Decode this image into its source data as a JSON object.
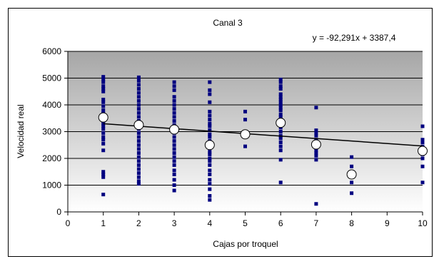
{
  "chart_data": {
    "type": "scatter",
    "title": "Canal 3",
    "xlabel": "Cajas por troquel",
    "ylabel": "Velocidad real",
    "xlim": [
      0,
      10
    ],
    "ylim": [
      0,
      6000
    ],
    "x_ticks": [
      0,
      1,
      2,
      3,
      4,
      5,
      6,
      7,
      8,
      9,
      10
    ],
    "y_ticks": [
      0,
      1000,
      2000,
      3000,
      4000,
      5000,
      6000
    ],
    "trendline": {
      "label": "y = -92,291x + 3387,4",
      "slope": -92.291,
      "intercept": 3387.4,
      "x_range": [
        1,
        10
      ]
    },
    "colors": {
      "points": "#000080",
      "means_fill": "#ffffff",
      "trendline": "#000000",
      "plot_bg_top": "#a6a6a6",
      "plot_bg_bottom": "#ffffff"
    },
    "series": [
      {
        "kind": "observations",
        "points": [
          [
            1,
            5050
          ],
          [
            1,
            4950
          ],
          [
            1,
            4850
          ],
          [
            1,
            4700
          ],
          [
            1,
            4600
          ],
          [
            1,
            4500
          ],
          [
            1,
            4200
          ],
          [
            1,
            4100
          ],
          [
            1,
            3950
          ],
          [
            1,
            3800
          ],
          [
            1,
            3700
          ],
          [
            1,
            3600
          ],
          [
            1,
            3500
          ],
          [
            1,
            3400
          ],
          [
            1,
            3300
          ],
          [
            1,
            3200
          ],
          [
            1,
            3100
          ],
          [
            1,
            2950
          ],
          [
            1,
            2800
          ],
          [
            1,
            2700
          ],
          [
            1,
            2550
          ],
          [
            1,
            2300
          ],
          [
            1,
            1500
          ],
          [
            1,
            1400
          ],
          [
            1,
            1300
          ],
          [
            1,
            650
          ],
          [
            2,
            5030
          ],
          [
            2,
            4900
          ],
          [
            2,
            4750
          ],
          [
            2,
            4600
          ],
          [
            2,
            4450
          ],
          [
            2,
            4300
          ],
          [
            2,
            4150
          ],
          [
            2,
            4000
          ],
          [
            2,
            3850
          ],
          [
            2,
            3700
          ],
          [
            2,
            3550
          ],
          [
            2,
            3400
          ],
          [
            2,
            3250
          ],
          [
            2,
            3100
          ],
          [
            2,
            2950
          ],
          [
            2,
            2800
          ],
          [
            2,
            2650
          ],
          [
            2,
            2500
          ],
          [
            2,
            2350
          ],
          [
            2,
            2200
          ],
          [
            2,
            2050
          ],
          [
            2,
            1900
          ],
          [
            2,
            1750
          ],
          [
            2,
            1600
          ],
          [
            2,
            1450
          ],
          [
            2,
            1300
          ],
          [
            2,
            1150
          ],
          [
            2,
            1050
          ],
          [
            3,
            4850
          ],
          [
            3,
            4700
          ],
          [
            3,
            4550
          ],
          [
            3,
            4300
          ],
          [
            3,
            4150
          ],
          [
            3,
            4000
          ],
          [
            3,
            3850
          ],
          [
            3,
            3700
          ],
          [
            3,
            3550
          ],
          [
            3,
            3400
          ],
          [
            3,
            3250
          ],
          [
            3,
            3100
          ],
          [
            3,
            2950
          ],
          [
            3,
            2800
          ],
          [
            3,
            2650
          ],
          [
            3,
            2500
          ],
          [
            3,
            2350
          ],
          [
            3,
            2200
          ],
          [
            3,
            2050
          ],
          [
            3,
            1900
          ],
          [
            3,
            1750
          ],
          [
            3,
            1550
          ],
          [
            3,
            1400
          ],
          [
            3,
            1200
          ],
          [
            3,
            1000
          ],
          [
            3,
            800
          ],
          [
            4,
            4850
          ],
          [
            4,
            4550
          ],
          [
            4,
            4400
          ],
          [
            4,
            4100
          ],
          [
            4,
            3750
          ],
          [
            4,
            3600
          ],
          [
            4,
            3450
          ],
          [
            4,
            3300
          ],
          [
            4,
            3200
          ],
          [
            4,
            3050
          ],
          [
            4,
            2900
          ],
          [
            4,
            2800
          ],
          [
            4,
            2650
          ],
          [
            4,
            2500
          ],
          [
            4,
            2400
          ],
          [
            4,
            2250
          ],
          [
            4,
            2150
          ],
          [
            4,
            2000
          ],
          [
            4,
            1900
          ],
          [
            4,
            1750
          ],
          [
            4,
            1550
          ],
          [
            4,
            1400
          ],
          [
            4,
            1200
          ],
          [
            4,
            1050
          ],
          [
            4,
            850
          ],
          [
            4,
            600
          ],
          [
            4,
            450
          ],
          [
            5,
            3750
          ],
          [
            5,
            3450
          ],
          [
            5,
            3000
          ],
          [
            5,
            2850
          ],
          [
            5,
            2450
          ],
          [
            6,
            4950
          ],
          [
            6,
            4850
          ],
          [
            6,
            4700
          ],
          [
            6,
            4600
          ],
          [
            6,
            4400
          ],
          [
            6,
            4300
          ],
          [
            6,
            4200
          ],
          [
            6,
            4100
          ],
          [
            6,
            4000
          ],
          [
            6,
            3900
          ],
          [
            6,
            3800
          ],
          [
            6,
            3650
          ],
          [
            6,
            3550
          ],
          [
            6,
            3450
          ],
          [
            6,
            3350
          ],
          [
            6,
            3250
          ],
          [
            6,
            3150
          ],
          [
            6,
            3000
          ],
          [
            6,
            2850
          ],
          [
            6,
            2750
          ],
          [
            6,
            2600
          ],
          [
            6,
            2450
          ],
          [
            6,
            2300
          ],
          [
            6,
            1950
          ],
          [
            6,
            1100
          ],
          [
            7,
            3900
          ],
          [
            7,
            3050
          ],
          [
            7,
            2950
          ],
          [
            7,
            2850
          ],
          [
            7,
            2700
          ],
          [
            7,
            2600
          ],
          [
            7,
            2500
          ],
          [
            7,
            2400
          ],
          [
            7,
            2300
          ],
          [
            7,
            2200
          ],
          [
            7,
            2100
          ],
          [
            7,
            1950
          ],
          [
            7,
            300
          ],
          [
            8,
            2050
          ],
          [
            8,
            1700
          ],
          [
            8,
            1300
          ],
          [
            8,
            1100
          ],
          [
            8,
            700
          ],
          [
            10,
            3200
          ],
          [
            10,
            2700
          ],
          [
            10,
            2600
          ],
          [
            10,
            2450
          ],
          [
            10,
            2300
          ],
          [
            10,
            2150
          ],
          [
            10,
            2000
          ],
          [
            10,
            1700
          ],
          [
            10,
            1100
          ]
        ]
      },
      {
        "kind": "means",
        "points": [
          [
            1,
            3530
          ],
          [
            2,
            3250
          ],
          [
            3,
            3080
          ],
          [
            4,
            2500
          ],
          [
            5,
            2900
          ],
          [
            6,
            3330
          ],
          [
            7,
            2520
          ],
          [
            8,
            1400
          ],
          [
            10,
            2280
          ]
        ]
      }
    ]
  }
}
